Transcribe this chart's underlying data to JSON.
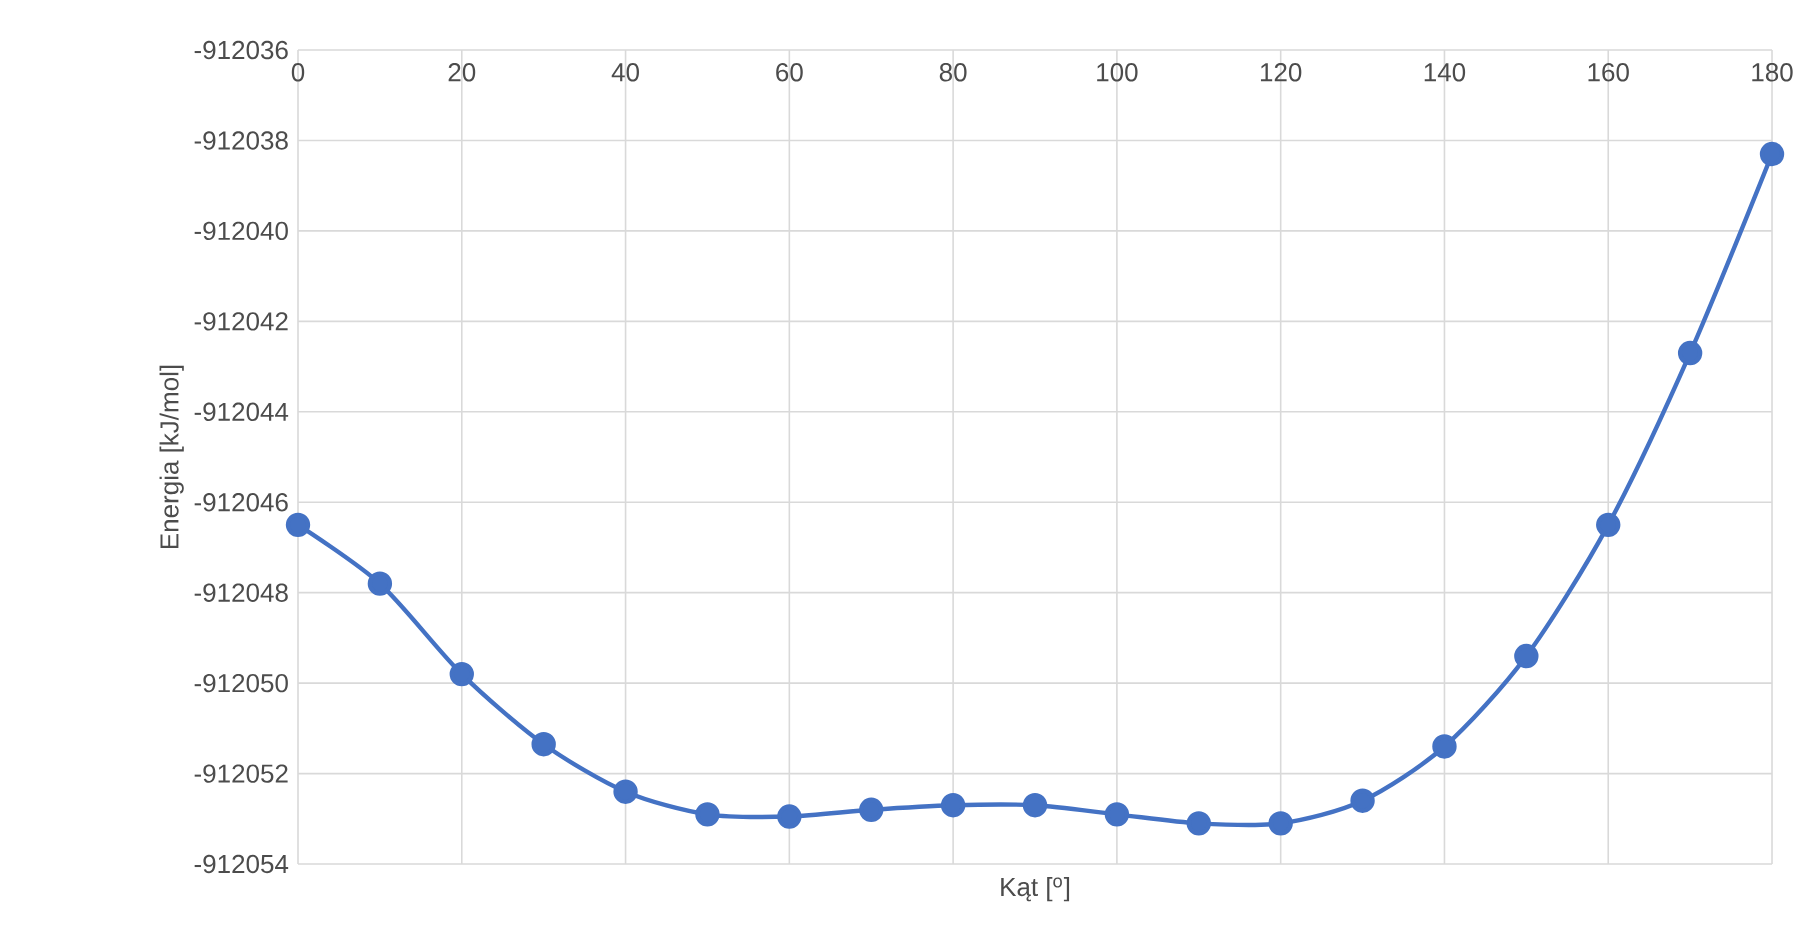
{
  "chart_data": {
    "type": "line",
    "xlabel": "Kąt [$^{o}$]",
    "ylabel": "Energia [kJ/mol]",
    "x": [
      0,
      10,
      20,
      30,
      40,
      50,
      60,
      70,
      80,
      90,
      100,
      110,
      120,
      130,
      140,
      150,
      160,
      170,
      180
    ],
    "series": [
      {
        "color": "#4472c4",
        "values": [
          -912046.5,
          -912047.8,
          -912049.8,
          -912051.35,
          -912052.4,
          -912052.9,
          -912052.95,
          -912052.8,
          -912052.7,
          -912052.7,
          -912052.9,
          -912053.1,
          -912053.1,
          -912052.6,
          -912051.4,
          -912049.4,
          -912046.5,
          -912042.7,
          -912038.3
        ]
      }
    ],
    "xlim": [
      0,
      180
    ],
    "ylim": [
      -912054,
      -912036
    ],
    "xticks": [
      0,
      20,
      40,
      60,
      80,
      100,
      120,
      140,
      160,
      180
    ],
    "yticks": [
      -912054,
      -912052,
      -912050,
      -912048,
      -912046,
      -912044,
      -912042,
      -912040,
      -912038,
      -912036
    ],
    "grid": true,
    "marker": "circle",
    "line_style": "solid"
  }
}
